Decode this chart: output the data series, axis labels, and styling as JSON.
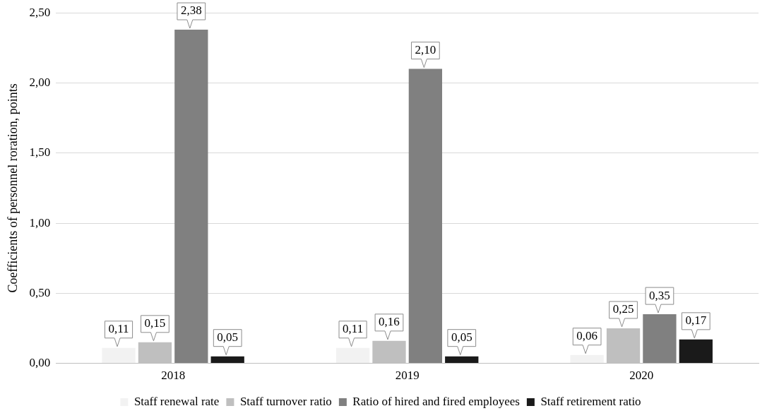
{
  "chart_data": {
    "type": "bar",
    "ylabel": "Coefficients of personnel roration, points",
    "categories": [
      "2018",
      "2019",
      "2020"
    ],
    "series": [
      {
        "name": "Staff renewal rate",
        "color": "#f2f2f2",
        "values": [
          0.11,
          0.11,
          0.06
        ],
        "value_labels": [
          "0,11",
          "0,11",
          "0,06"
        ]
      },
      {
        "name": "Staff turnover ratio",
        "color": "#bfbfbf",
        "values": [
          0.15,
          0.16,
          0.25
        ],
        "value_labels": [
          "0,15",
          "0,16",
          "0,25"
        ]
      },
      {
        "name": "Ratio of hired and fired employees",
        "color": "#808080",
        "values": [
          2.38,
          2.1,
          0.35
        ],
        "value_labels": [
          "2,38",
          "2,10",
          "0,35"
        ]
      },
      {
        "name": "Staff retirement ratio",
        "color": "#1a1a1a",
        "values": [
          0.05,
          0.05,
          0.17
        ],
        "value_labels": [
          "0,05",
          "0,05",
          "0,17"
        ]
      }
    ],
    "ylim": [
      0,
      2.5
    ],
    "yticks": [
      {
        "value": 0,
        "label": "0,00"
      },
      {
        "value": 0.5,
        "label": "0,50"
      },
      {
        "value": 1,
        "label": "1,00"
      },
      {
        "value": 1.5,
        "label": "1,50"
      },
      {
        "value": 2,
        "label": "2,00"
      },
      {
        "value": 2.5,
        "label": "2,50"
      }
    ],
    "grid": "y",
    "legend": "bottom"
  }
}
